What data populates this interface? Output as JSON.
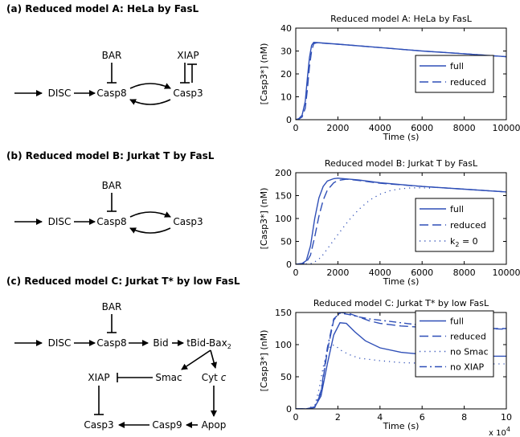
{
  "panels": [
    {
      "title": "(a) Reduced model A: HeLa by FasL",
      "diagram": {
        "nodes": {
          "disc": "DISC",
          "casp8": "Casp8",
          "casp3": "Casp3",
          "bar": "BAR",
          "xiap": "XIAP"
        }
      },
      "chart_data": {
        "type": "line",
        "title": "Reduced model A: HeLa by FasL",
        "xlabel": "Time (s)",
        "ylabel": "[Casp3*] (nM)",
        "xlim": [
          0,
          10000
        ],
        "ylim": [
          0,
          40
        ],
        "xticks": [
          0,
          2000,
          4000,
          6000,
          8000,
          10000
        ],
        "yticks": [
          0,
          10,
          20,
          30,
          40
        ],
        "legend_position": "right",
        "series": [
          {
            "name": "full",
            "style": "solid",
            "x": [
              0,
              150,
              300,
              450,
              550,
              650,
              750,
              850,
              1000,
              2000,
              4000,
              6000,
              8000,
              10000
            ],
            "y": [
              0,
              0.5,
              2,
              8,
              18,
              27,
              32.5,
              33.8,
              33.7,
              33,
              31.5,
              30,
              28.8,
              27.5
            ]
          },
          {
            "name": "reduced",
            "style": "dashed",
            "x": [
              0,
              150,
              300,
              450,
              550,
              650,
              750,
              850,
              1000,
              2000,
              4000,
              6000,
              8000,
              10000
            ],
            "y": [
              0,
              0.3,
              1.2,
              5,
              13,
              23,
              30,
              33.2,
              33.6,
              33,
              31.5,
              30,
              28.8,
              27.5
            ]
          }
        ]
      }
    },
    {
      "title": "(b) Reduced model B: Jurkat T by FasL",
      "diagram": {
        "nodes": {
          "disc": "DISC",
          "casp8": "Casp8",
          "casp3": "Casp3",
          "bar": "BAR"
        }
      },
      "chart_data": {
        "type": "line",
        "title": "Reduced model B: Jurkat T by FasL",
        "xlabel": "Time (s)",
        "ylabel": "[Casp3*] (nM)",
        "xlim": [
          0,
          10000
        ],
        "ylim": [
          0,
          200
        ],
        "xticks": [
          0,
          2000,
          4000,
          6000,
          8000,
          10000
        ],
        "yticks": [
          0,
          50,
          100,
          150,
          200
        ],
        "legend_position": "right",
        "series": [
          {
            "name": "full",
            "style": "solid",
            "x": [
              0,
              300,
              500,
              700,
              900,
              1100,
              1300,
              1500,
              1800,
              2000,
              3000,
              4000,
              6000,
              8000,
              10000
            ],
            "y": [
              0,
              2,
              8,
              40,
              100,
              145,
              170,
              182,
              187,
              188,
              184,
              178,
              170,
              164,
              158
            ]
          },
          {
            "name": "reduced",
            "style": "dashed",
            "x": [
              0,
              300,
              500,
              700,
              900,
              1100,
              1300,
              1500,
              1800,
              2000,
              2400,
              3000,
              4000,
              6000,
              8000,
              10000
            ],
            "y": [
              0,
              1,
              4,
              20,
              60,
              105,
              140,
              162,
              178,
              183,
              186,
              183,
              177,
              170,
              164,
              158
            ]
          },
          {
            "name": "k2 = 0",
            "style": "dotted",
            "x": [
              0,
              800,
              1200,
              1600,
              2000,
              2500,
              3000,
              3500,
              4000,
              4500,
              5000,
              5500,
              6000,
              6500
            ],
            "y": [
              0,
              2,
              15,
              40,
              65,
              95,
              120,
              140,
              153,
              161,
              165,
              167,
              167,
              166
            ]
          }
        ]
      }
    },
    {
      "title": "(c) Reduced model C: Jurkat T* by low FasL",
      "diagram": {
        "nodes": {
          "disc": "DISC",
          "casp8": "Casp8",
          "bid": "Bid",
          "tbid": "tBid-Bax",
          "tbid_sub": "2",
          "bar": "BAR",
          "smac": "Smac",
          "cytc": "Cyt",
          "cytc_italic": "c",
          "xiap": "XIAP",
          "casp3": "Casp3",
          "casp9": "Casp9",
          "apop": "Apop"
        }
      },
      "chart_data": {
        "type": "line",
        "title": "Reduced model C: Jurkat T* by low FasL",
        "xlabel": "Time (s)",
        "ylabel": "[Casp3*] (nM)",
        "xlim": [
          0,
          10
        ],
        "ylim": [
          0,
          150
        ],
        "xticks": [
          0,
          2,
          4,
          6,
          8,
          10
        ],
        "yticks": [
          0,
          50,
          100,
          150
        ],
        "x_multiplier": "x 10",
        "x_multiplier_exp": "4",
        "legend_position": "right",
        "series": [
          {
            "name": "full",
            "style": "solid",
            "x": [
              0,
              0.5,
              0.9,
              1.2,
              1.5,
              1.8,
              2.1,
              2.4,
              2.8,
              3.3,
              4,
              5,
              6,
              7,
              8,
              9,
              10
            ],
            "y": [
              0,
              0,
              3,
              20,
              70,
              115,
              134,
              133,
              120,
              106,
              95,
              88,
              85,
              83,
              82,
              82,
              82
            ]
          },
          {
            "name": "reduced",
            "style": "dashed",
            "x": [
              0,
              0.5,
              0.9,
              1.2,
              1.5,
              1.8,
              2.1,
              2.5,
              3,
              3.5,
              4,
              5,
              6,
              7,
              8,
              9,
              10
            ],
            "y": [
              0,
              0,
              2,
              25,
              90,
              138,
              150,
              149,
              143,
              137,
              133,
              129,
              127,
              126,
              125,
              125,
              125
            ]
          },
          {
            "name": "no Smac",
            "style": "dotted",
            "x": [
              0,
              0.5,
              0.9,
              1.1,
              1.3,
              1.5,
              1.7,
              1.9,
              2.1,
              2.5,
              3,
              4,
              5,
              6,
              7,
              8,
              9,
              10
            ],
            "y": [
              0,
              0,
              5,
              30,
              65,
              90,
              100,
              98,
              92,
              85,
              79,
              75,
              72,
              71,
              70,
              70,
              70,
              70
            ]
          },
          {
            "name": "no XIAP",
            "style": "dashdot",
            "x": [
              0,
              0.5,
              0.9,
              1.2,
              1.5,
              1.8,
              2.1,
              2.5,
              3,
              3.5,
              4,
              5,
              6,
              7,
              8,
              9,
              10
            ],
            "y": [
              0,
              0,
              3,
              28,
              95,
              140,
              149,
              147,
              143,
              140,
              138,
              134,
              130,
              128,
              126,
              125,
              124
            ]
          }
        ]
      }
    }
  ],
  "colors": {
    "line": "#2f4fb7",
    "axis": "#000000"
  }
}
